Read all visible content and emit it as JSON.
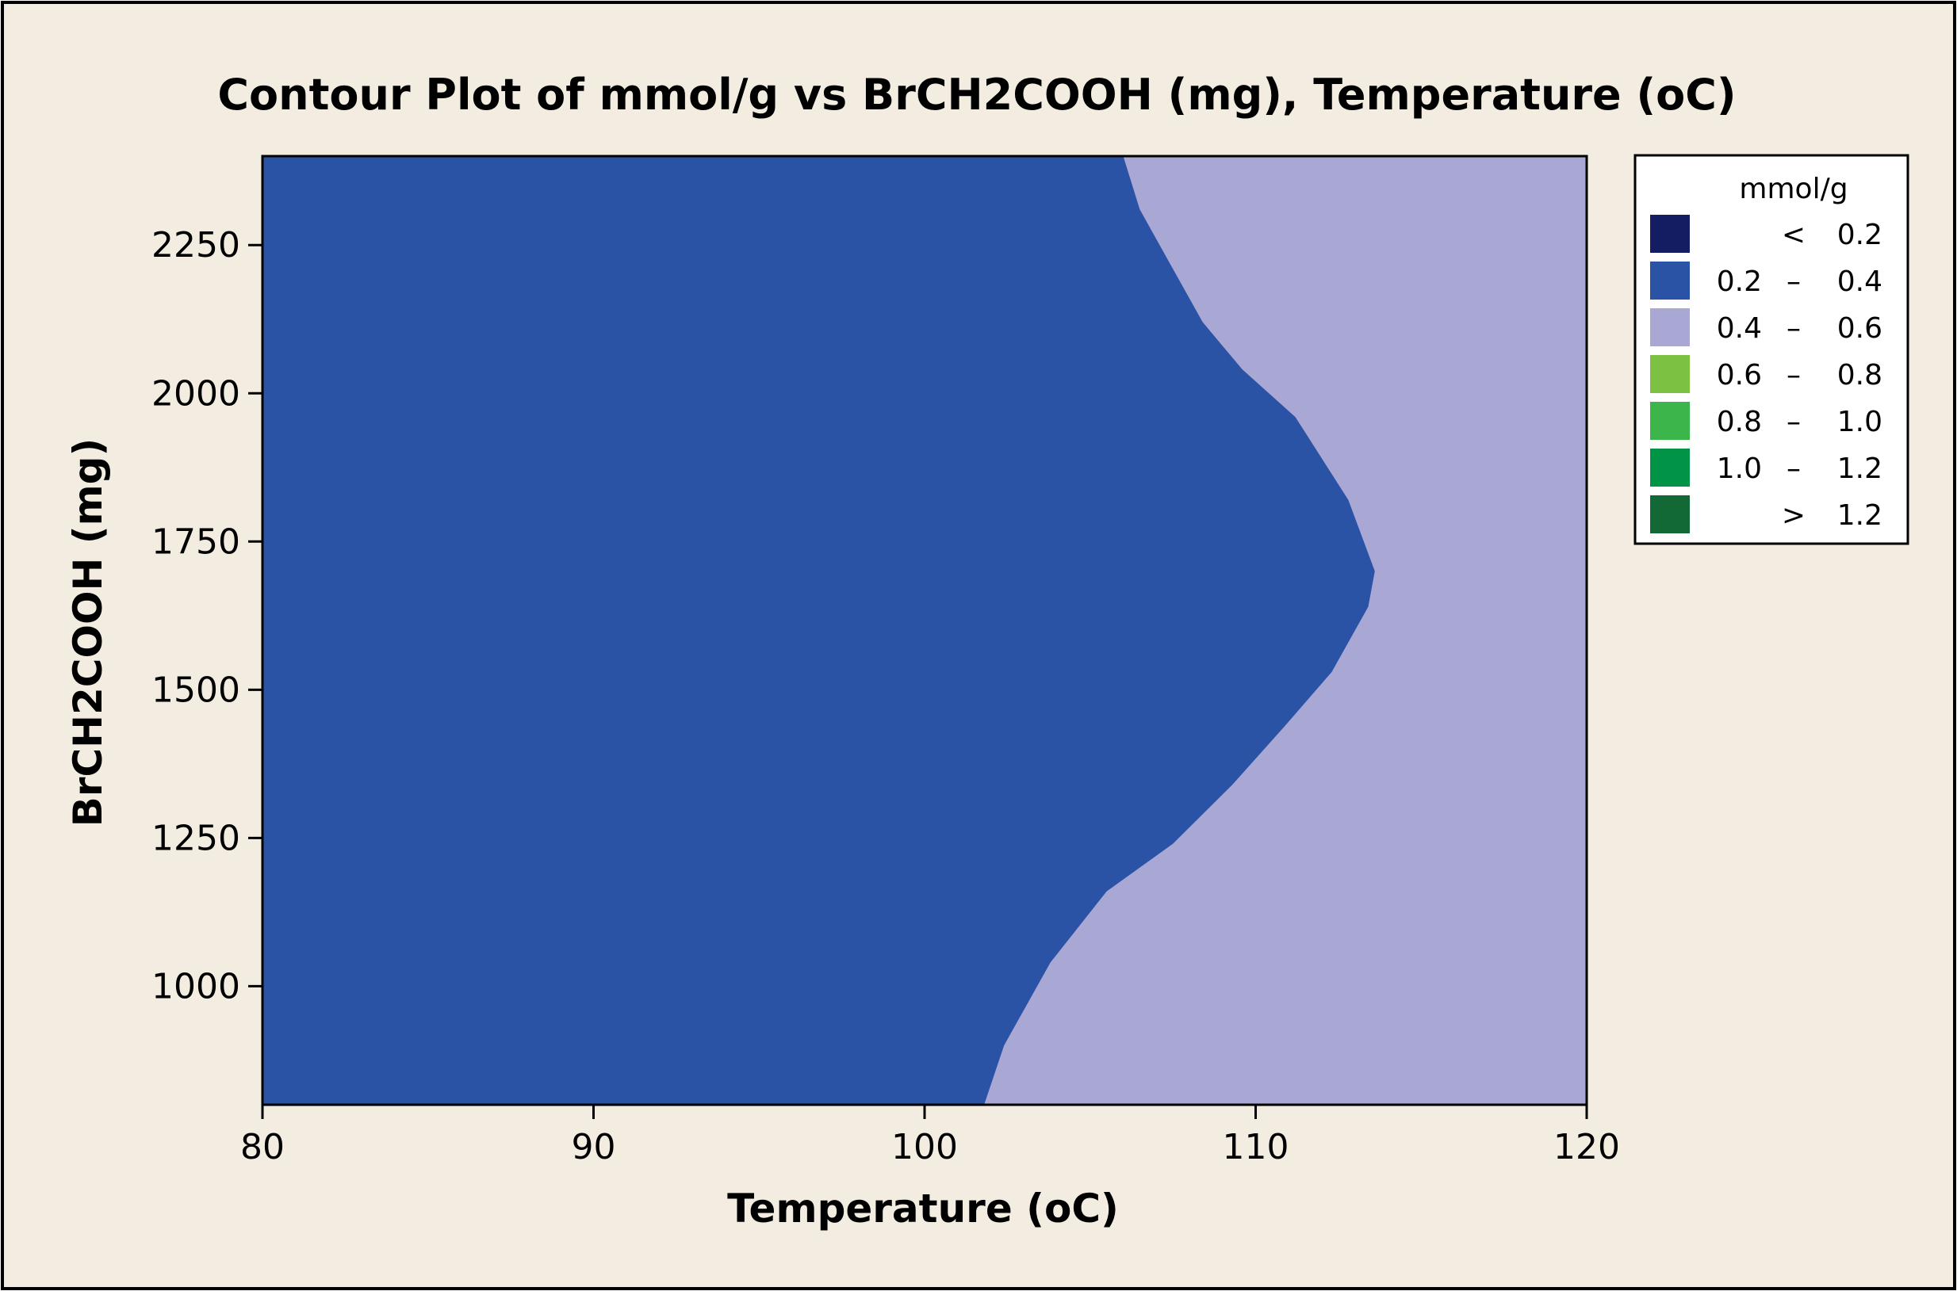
{
  "chart_data": {
    "type": "contour",
    "title": "Contour Plot of mmol/g vs BrCH2COOH (mg), Temperature (oC)",
    "xlabel": "Temperature (oC)",
    "ylabel": "BrCH2COOH (mg)",
    "xlim": [
      80,
      120
    ],
    "ylim": [
      800,
      2400
    ],
    "x_ticks": [
      "80",
      "90",
      "100",
      "110",
      "120"
    ],
    "x_tick_values": [
      80,
      90,
      100,
      110,
      120
    ],
    "y_ticks": [
      "1000",
      "1250",
      "1500",
      "1750",
      "2000",
      "2250"
    ],
    "y_tick_values": [
      1000,
      1250,
      1500,
      1750,
      2000,
      2250
    ],
    "grid": false,
    "legend_position": "right",
    "legend": {
      "title": "mmol/g",
      "levels": [
        {
          "low": "",
          "sep": "<",
          "high": "0.2",
          "color": "#141c62"
        },
        {
          "low": "0.2",
          "sep": "–",
          "high": "0.4",
          "color": "#2a52a5"
        },
        {
          "low": "0.4",
          "sep": "–",
          "high": "0.6",
          "color": "#a9a8d4"
        },
        {
          "low": "0.6",
          "sep": "–",
          "high": "0.8",
          "color": "#7cc142"
        },
        {
          "low": "0.8",
          "sep": "–",
          "high": "1.0",
          "color": "#3cb54b"
        },
        {
          "low": "1.0",
          "sep": "–",
          "high": "1.2",
          "color": "#019447"
        },
        {
          "low": "",
          "sep": ">",
          "high": "1.2",
          "color": "#126936"
        }
      ]
    },
    "regions": [
      {
        "level": "0.2 – 0.4",
        "color": "#2a52a5",
        "side": "left of boundary"
      },
      {
        "level": "0.4 – 0.6",
        "color": "#a9a8d4",
        "side": "right of boundary"
      }
    ],
    "boundary": [
      {
        "temperature": 101.8,
        "brch2cooh": 800
      },
      {
        "temperature": 102.4,
        "brch2cooh": 900
      },
      {
        "temperature": 103.8,
        "brch2cooh": 1040
      },
      {
        "temperature": 105.5,
        "brch2cooh": 1160
      },
      {
        "temperature": 107.5,
        "brch2cooh": 1240
      },
      {
        "temperature": 109.3,
        "brch2cooh": 1340
      },
      {
        "temperature": 110.9,
        "brch2cooh": 1440
      },
      {
        "temperature": 112.3,
        "brch2cooh": 1530
      },
      {
        "temperature": 113.4,
        "brch2cooh": 1640
      },
      {
        "temperature": 113.6,
        "brch2cooh": 1700
      },
      {
        "temperature": 112.8,
        "brch2cooh": 1820
      },
      {
        "temperature": 111.2,
        "brch2cooh": 1960
      },
      {
        "temperature": 109.6,
        "brch2cooh": 2040
      },
      {
        "temperature": 108.4,
        "brch2cooh": 2120
      },
      {
        "temperature": 107.3,
        "brch2cooh": 2230
      },
      {
        "temperature": 106.5,
        "brch2cooh": 2310
      },
      {
        "temperature": 106.0,
        "brch2cooh": 2400
      }
    ],
    "colors": {
      "background": "#f2ede0",
      "frame": "#000000"
    }
  }
}
